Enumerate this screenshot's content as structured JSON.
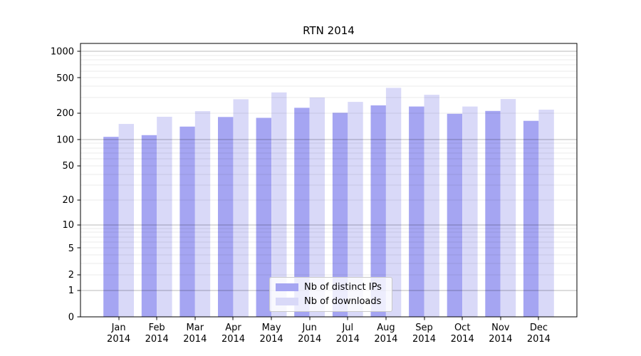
{
  "title": "RTN 2014",
  "chart_data": {
    "type": "bar",
    "title": "RTN 2014",
    "xlabel": "",
    "ylabel": "",
    "categories": [
      "Jan 2014",
      "Feb 2014",
      "Mar 2014",
      "Apr 2014",
      "May 2014",
      "Jun 2014",
      "Jul 2014",
      "Aug 2014",
      "Sep 2014",
      "Oct 2014",
      "Nov 2014",
      "Dec 2014"
    ],
    "series": [
      {
        "name": "Nb of distinct IPs",
        "color": "#a5a5f2",
        "values": [
          107,
          112,
          140,
          180,
          176,
          229,
          201,
          244,
          237,
          196,
          211,
          163
        ]
      },
      {
        "name": "Nb of downloads",
        "color": "#d9d9f8",
        "values": [
          150,
          181,
          210,
          286,
          342,
          300,
          267,
          385,
          322,
          237,
          288,
          218
        ]
      }
    ],
    "yscale": "log1p",
    "y_ticks": [
      0,
      1,
      2,
      5,
      10,
      20,
      50,
      100,
      200,
      500,
      1000
    ],
    "major_gridlines": [
      1,
      10,
      100,
      1000
    ],
    "ylim": [
      0,
      1230
    ],
    "grid": "on",
    "legend_position": "lower center",
    "colors": {
      "spine": "#000000",
      "tick_label": "#000000",
      "major_grid": "rgba(0,0,0,0.28)",
      "minor_grid": "rgba(0,0,0,0.08)"
    }
  }
}
